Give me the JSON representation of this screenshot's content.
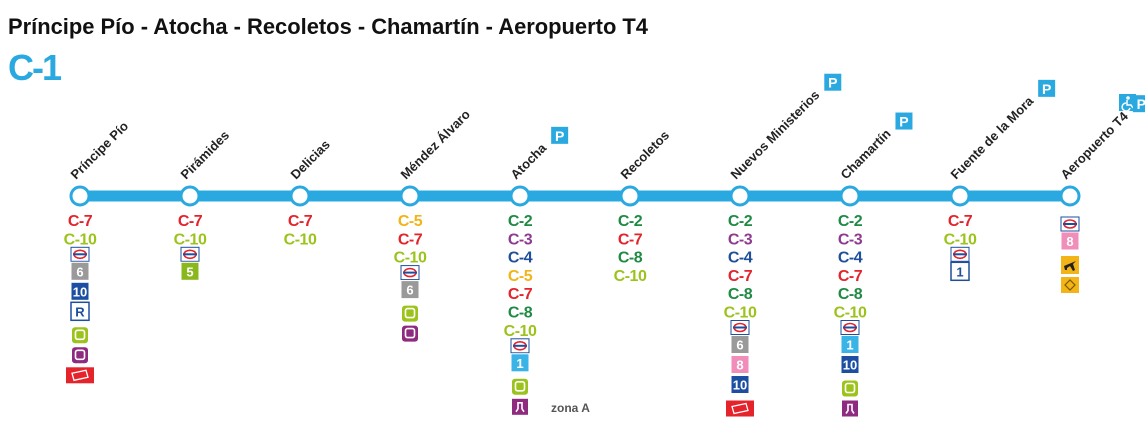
{
  "header": {
    "title": "Príncipe Pío - Atocha - Recoletos - Chamartín - Aeropuerto T4",
    "line": "C-1",
    "line_color": "#2aa9e0"
  },
  "zone": "zona A",
  "stations": [
    {
      "name": "Príncipe Pío",
      "connections": [
        {
          "label": "C-7",
          "color": "#e4232b"
        },
        {
          "label": "C-10",
          "color": "#9cc31c"
        }
      ],
      "metro": [
        {
          "label": "6",
          "color": "#9a9a9a"
        },
        {
          "label": "10",
          "color": "#1c4fa1"
        },
        {
          "label": "R",
          "color": "#1c4fa1",
          "outline": true
        }
      ]
    },
    {
      "name": "Pirámides",
      "connections": [
        {
          "label": "C-7",
          "color": "#e4232b"
        },
        {
          "label": "C-10",
          "color": "#9cc31c"
        }
      ],
      "metro": [
        {
          "label": "5",
          "color": "#8ab81c"
        }
      ]
    },
    {
      "name": "Delicias",
      "connections": [
        {
          "label": "C-7",
          "color": "#e4232b"
        },
        {
          "label": "C-10",
          "color": "#9cc31c"
        }
      ],
      "metro": []
    },
    {
      "name": "Méndez Álvaro",
      "connections": [
        {
          "label": "C-5",
          "color": "#f2b417"
        },
        {
          "label": "C-7",
          "color": "#e4232b"
        },
        {
          "label": "C-10",
          "color": "#9cc31c"
        }
      ],
      "metro": [
        {
          "label": "6",
          "color": "#9a9a9a"
        }
      ]
    },
    {
      "name": "Atocha",
      "parking": "P",
      "connections": [
        {
          "label": "C-2",
          "color": "#1e8a43"
        },
        {
          "label": "C-3",
          "color": "#8e3a8f"
        },
        {
          "label": "C-4",
          "color": "#1f4f9a"
        },
        {
          "label": "C-5",
          "color": "#f2b417"
        },
        {
          "label": "C-7",
          "color": "#e4232b"
        },
        {
          "label": "C-8",
          "color": "#1e8a43"
        },
        {
          "label": "C-10",
          "color": "#9cc31c"
        }
      ],
      "metro": [
        {
          "label": "1",
          "color": "#3ab4e6"
        }
      ]
    },
    {
      "name": "Recoletos",
      "connections": [
        {
          "label": "C-2",
          "color": "#1e8a43"
        },
        {
          "label": "C-7",
          "color": "#e4232b"
        },
        {
          "label": "C-8",
          "color": "#1e8a43"
        },
        {
          "label": "C-10",
          "color": "#9cc31c"
        }
      ],
      "metro": []
    },
    {
      "name": "Nuevos Ministerios",
      "parking": "P",
      "connections": [
        {
          "label": "C-2",
          "color": "#1e8a43"
        },
        {
          "label": "C-3",
          "color": "#8e3a8f"
        },
        {
          "label": "C-4",
          "color": "#1f4f9a"
        },
        {
          "label": "C-7",
          "color": "#e4232b"
        },
        {
          "label": "C-8",
          "color": "#1e8a43"
        },
        {
          "label": "C-10",
          "color": "#9cc31c"
        }
      ],
      "metro": [
        {
          "label": "6",
          "color": "#9a9a9a"
        },
        {
          "label": "8",
          "color": "#f08db8"
        },
        {
          "label": "10",
          "color": "#1c4fa1"
        }
      ]
    },
    {
      "name": "Chamartín",
      "parking": "P",
      "connections": [
        {
          "label": "C-2",
          "color": "#1e8a43"
        },
        {
          "label": "C-3",
          "color": "#8e3a8f"
        },
        {
          "label": "C-4",
          "color": "#1f4f9a"
        },
        {
          "label": "C-7",
          "color": "#e4232b"
        },
        {
          "label": "C-8",
          "color": "#1e8a43"
        },
        {
          "label": "C-10",
          "color": "#9cc31c"
        }
      ],
      "metro": [
        {
          "label": "1",
          "color": "#3ab4e6"
        },
        {
          "label": "10",
          "color": "#1c4fa1"
        }
      ]
    },
    {
      "name": "Fuente de la Mora",
      "parking": "P",
      "connections": [
        {
          "label": "C-7",
          "color": "#e4232b"
        },
        {
          "label": "C-10",
          "color": "#9cc31c"
        }
      ],
      "metro": [
        {
          "label": "1",
          "color": "#1f4f9a",
          "outline": true
        }
      ]
    },
    {
      "name": "Aeropuerto T4",
      "parking": "P",
      "connections": [],
      "metro": [
        {
          "label": "8",
          "color": "#f08db8"
        }
      ]
    }
  ]
}
